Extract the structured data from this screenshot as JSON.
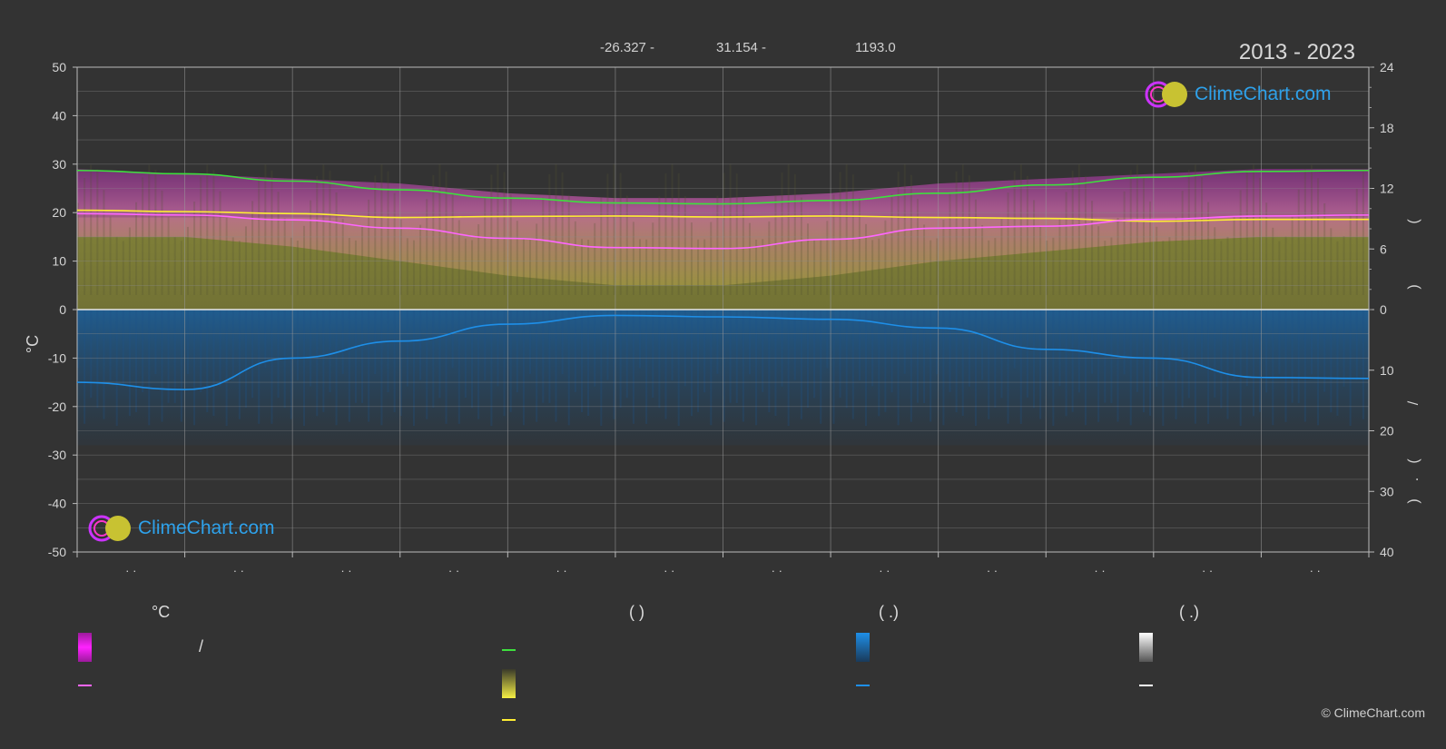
{
  "header": {
    "lat": "-26.327 -",
    "lon": "31.154 -",
    "elev": "1193.0",
    "years": "2013 - 2023"
  },
  "copyright": "© ClimeChart.com",
  "logo_text": "ClimeChart.com",
  "colors": {
    "bg": "#333333",
    "green": "#3de03d",
    "pink": "#ff66ff",
    "yellow": "#ffee33",
    "blue": "#1e8fe8",
    "brand": "#2ea1ea"
  },
  "legend": {
    "col1_head": "°C",
    "col2_head": "(          )",
    "col3_head": "(   .)",
    "col4_head": "(   .)",
    "slash": "/"
  },
  "chart_data": {
    "type": "line",
    "y_left": {
      "label": "°C",
      "ticks": [
        50,
        40,
        30,
        20,
        10,
        0,
        -10,
        -20,
        -30,
        -40,
        -50
      ],
      "range": [
        -50,
        50
      ]
    },
    "y_right_top": {
      "ticks": [
        24,
        18,
        12,
        6,
        0
      ],
      "range": [
        0,
        24
      ]
    },
    "y_right_bottom": {
      "ticks": [
        0,
        10,
        20,
        30,
        40
      ],
      "range": [
        0,
        40
      ]
    },
    "right_axis_labels": [
      "(",
      ")",
      "/",
      "(",
      ".",
      ")"
    ],
    "x_tick_labels": [
      "· ·",
      "· ·",
      "· ·",
      "· ·",
      "· ·",
      "· ·",
      "· ·",
      "· ·",
      "· ·",
      "· ·",
      "· ·",
      "· ·"
    ],
    "months": 12,
    "series": [
      {
        "key": "daylight_hours",
        "color": "#3de03d",
        "points": [
          [
            0,
            28.7
          ],
          [
            1,
            28.0
          ],
          [
            2,
            26.5
          ],
          [
            3,
            24.7
          ],
          [
            4,
            23.0
          ],
          [
            5,
            22.0
          ],
          [
            6,
            21.8
          ],
          [
            7,
            22.5
          ],
          [
            8,
            24.0
          ],
          [
            9,
            25.7
          ],
          [
            10,
            27.3
          ],
          [
            11,
            28.5
          ],
          [
            12,
            28.7
          ]
        ]
      },
      {
        "key": "sunshine_hours",
        "color": "#ffee33",
        "points": [
          [
            0,
            20.5
          ],
          [
            1,
            20.2
          ],
          [
            2,
            19.8
          ],
          [
            3,
            19.0
          ],
          [
            4,
            19.2
          ],
          [
            5,
            19.3
          ],
          [
            6,
            19.1
          ],
          [
            7,
            19.3
          ],
          [
            8,
            19.0
          ],
          [
            9,
            18.8
          ],
          [
            10,
            18.2
          ],
          [
            11,
            18.6
          ],
          [
            12,
            18.6
          ]
        ]
      },
      {
        "key": "avg_temp",
        "color": "#ff66ff",
        "points": [
          [
            0,
            19.8
          ],
          [
            1,
            19.5
          ],
          [
            2,
            18.5
          ],
          [
            3,
            16.8
          ],
          [
            4,
            14.7
          ],
          [
            5,
            12.8
          ],
          [
            6,
            12.6
          ],
          [
            7,
            14.5
          ],
          [
            8,
            16.8
          ],
          [
            9,
            17.2
          ],
          [
            10,
            18.6
          ],
          [
            11,
            19.3
          ],
          [
            12,
            19.5
          ]
        ]
      },
      {
        "key": "precip",
        "color": "#1e8fe8",
        "points": [
          [
            0,
            -15.0
          ],
          [
            1,
            -16.5
          ],
          [
            2,
            -10.0
          ],
          [
            3,
            -6.5
          ],
          [
            4,
            -3.0
          ],
          [
            5,
            -1.2
          ],
          [
            6,
            -1.5
          ],
          [
            7,
            -2.0
          ],
          [
            8,
            -3.8
          ],
          [
            9,
            -8.2
          ],
          [
            10,
            -10.0
          ],
          [
            11,
            -14.0
          ],
          [
            12,
            -14.2
          ]
        ]
      }
    ],
    "bands": {
      "temp_max_band": [
        29,
        28,
        27,
        26,
        24,
        23,
        23,
        24,
        26,
        27,
        28,
        29
      ],
      "temp_min_band": [
        15,
        15,
        13,
        10,
        7,
        5,
        5,
        7,
        10,
        12,
        14,
        15
      ]
    },
    "grid": true
  }
}
